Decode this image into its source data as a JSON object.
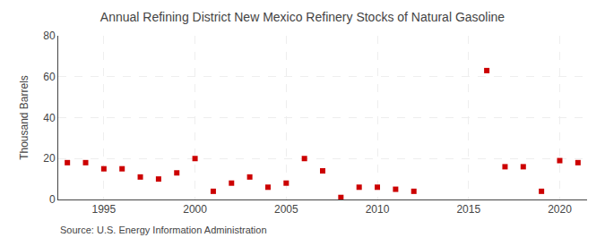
{
  "chart_data": {
    "type": "scatter",
    "title": "Annual Refining District New Mexico Refinery Stocks of Natural Gasoline",
    "ylabel": "Thousand Barrels",
    "annotations": [
      "Source: U.S. Energy Information Administration"
    ],
    "x": [
      1993,
      1994,
      1995,
      1996,
      1997,
      1998,
      1999,
      2000,
      2001,
      2002,
      2003,
      2004,
      2005,
      2006,
      2007,
      2008,
      2009,
      2010,
      2011,
      2012,
      2016,
      2017,
      2018,
      2019,
      2020,
      2021
    ],
    "values": [
      18,
      18,
      15,
      15,
      11,
      10,
      13,
      20,
      4,
      8,
      11,
      6,
      8,
      20,
      14,
      1,
      6,
      6,
      5,
      4,
      63,
      16,
      16,
      4,
      19,
      18
    ],
    "color": "#cc0000",
    "marker": "square",
    "xlim": [
      1992.5,
      2021.5
    ],
    "ylim": [
      0,
      80
    ],
    "xticks": [
      1995,
      2000,
      2005,
      2010,
      2015,
      2020
    ],
    "yticks": [
      0,
      20,
      40,
      60,
      80
    ],
    "grid": true
  }
}
